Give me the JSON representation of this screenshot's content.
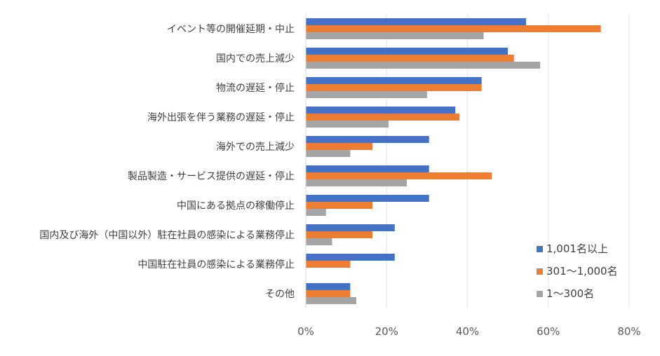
{
  "chart_data": {
    "type": "bar",
    "orientation": "horizontal",
    "categories": [
      "イベント等の開催延期・中止",
      "国内での売上減少",
      "物流の遅延・停止",
      "海外出張を伴う業務の遅延・停止",
      "海外での売上減少",
      "製品製造・サービス提供の遅延・停止",
      "中国にある拠点の稼働停止",
      "国内及び海外（中国以外）駐在社員の感染による業務停止",
      "中国駐在社員の感染による業務停止",
      "その他"
    ],
    "series": [
      {
        "name": "1,001名以上",
        "color": "#4472C4",
        "values": [
          54.5,
          50.0,
          43.5,
          37.0,
          30.5,
          30.5,
          30.5,
          22.0,
          22.0,
          11.0
        ]
      },
      {
        "name": "301～1,000名",
        "color": "#ED7D31",
        "values": [
          73.0,
          51.5,
          43.5,
          38.0,
          16.5,
          46.0,
          16.5,
          16.5,
          11.0,
          11.0
        ]
      },
      {
        "name": "1～300名",
        "color": "#A5A5A5",
        "values": [
          44.0,
          58.0,
          30.0,
          20.5,
          11.0,
          25.0,
          5.0,
          6.5,
          0,
          12.5
        ]
      }
    ],
    "xlim": [
      0,
      80
    ],
    "xticks": [
      "0%",
      "20%",
      "40%",
      "60%",
      "80%"
    ],
    "grid": true,
    "legend_position": "bottom-right"
  }
}
